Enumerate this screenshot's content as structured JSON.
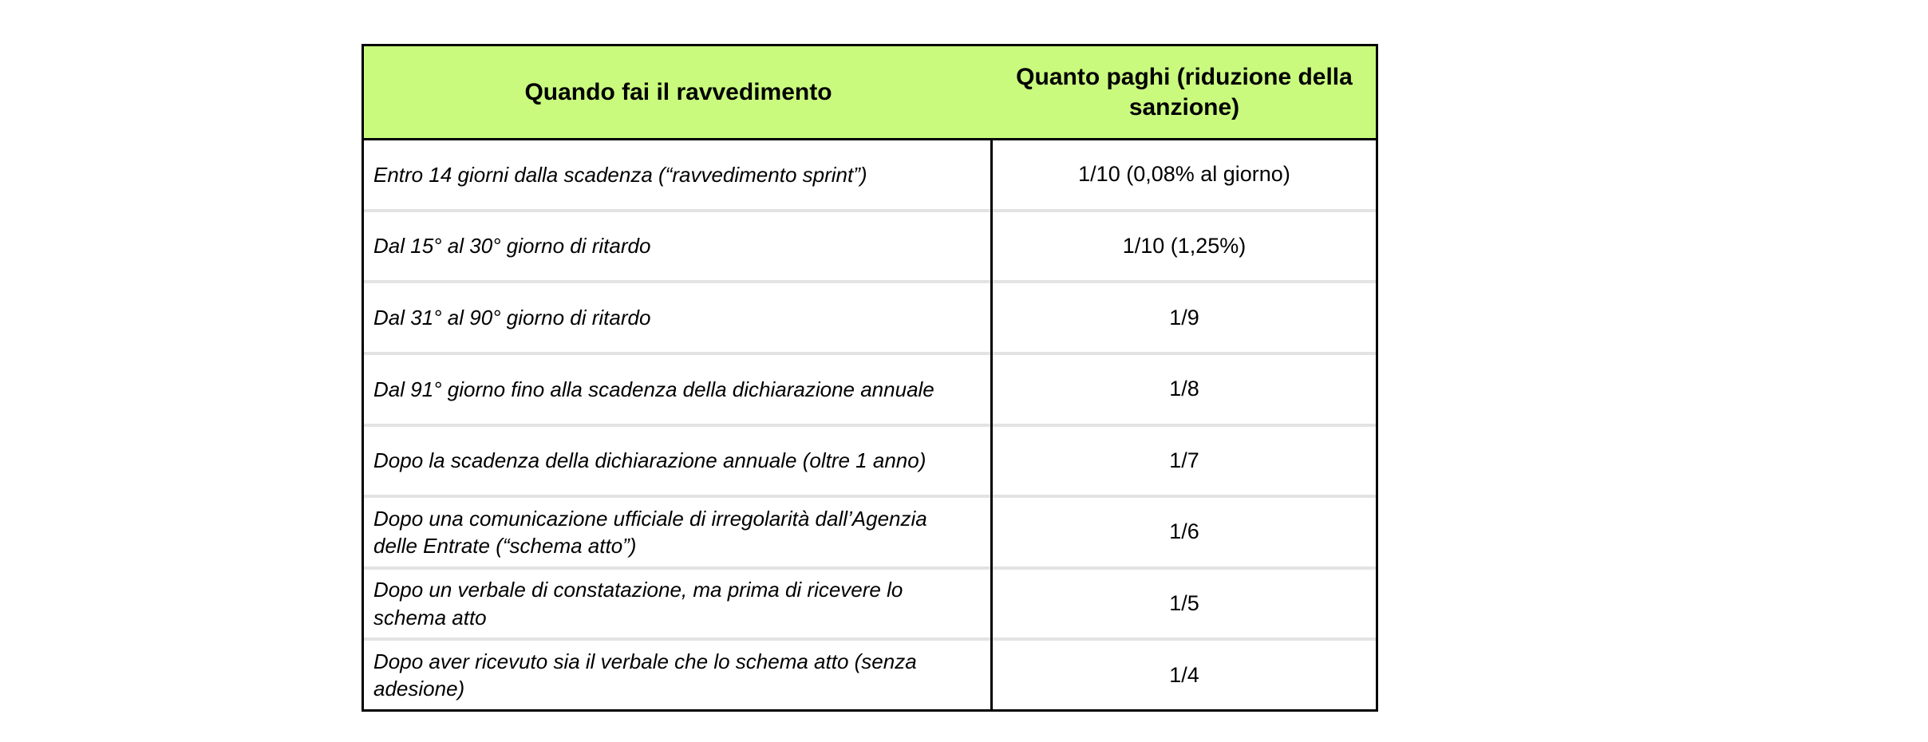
{
  "colors": {
    "header_background": "#c9fa7e",
    "outer_border": "#000000",
    "row_separator": "#e3e3e3",
    "text": "#000000"
  },
  "table": {
    "headers": [
      "Quando fai il ravvedimento",
      "Quanto paghi (riduzione della sanzione)"
    ],
    "rows": [
      {
        "when": "Entro 14 giorni dalla scadenza (“ravvedimento sprint”)",
        "pay": "1/10 (0,08% al giorno)"
      },
      {
        "when": "Dal 15° al 30° giorno di ritardo",
        "pay": "1/10 (1,25%)"
      },
      {
        "when": "Dal 31° al 90° giorno di ritardo",
        "pay": "1/9"
      },
      {
        "when": "Dal 91° giorno fino alla scadenza della dichiarazione annuale",
        "pay": "1/8"
      },
      {
        "when": "Dopo la scadenza della dichiarazione annuale (oltre 1 anno)",
        "pay": "1/7"
      },
      {
        "when": "Dopo una comunicazione ufficiale di irregolarità dall’Agenzia delle Entrate (“schema atto”)",
        "pay": "1/6"
      },
      {
        "when": "Dopo un verbale di constatazione, ma prima di ricevere lo schema atto",
        "pay": "1/5"
      },
      {
        "when": "Dopo aver ricevuto sia il verbale che lo schema atto (senza adesione)",
        "pay": "1/4"
      }
    ]
  }
}
